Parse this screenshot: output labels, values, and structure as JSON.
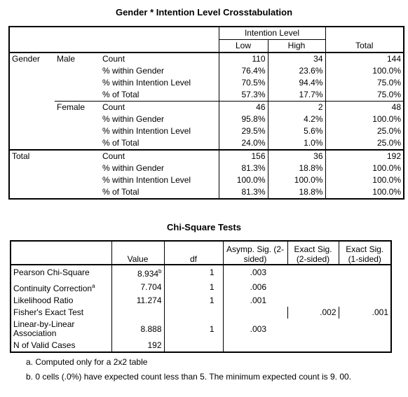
{
  "crosstab": {
    "title": "Gender * Intention Level Crosstabulation",
    "header_group": "Intention Level",
    "col_low": "Low",
    "col_high": "High",
    "col_total": "Total",
    "row_var": "Gender",
    "stat_labels": [
      "Count",
      "% within Gender",
      "% within Intention Level",
      "% of Total"
    ],
    "male": {
      "label": "Male",
      "rows": [
        [
          "110",
          "34",
          "144"
        ],
        [
          "76.4%",
          "23.6%",
          "100.0%"
        ],
        [
          "70.5%",
          "94.4%",
          "75.0%"
        ],
        [
          "57.3%",
          "17.7%",
          "75.0%"
        ]
      ]
    },
    "female": {
      "label": "Female",
      "rows": [
        [
          "46",
          "2",
          "48"
        ],
        [
          "95.8%",
          "4.2%",
          "100.0%"
        ],
        [
          "29.5%",
          "5.6%",
          "25.0%"
        ],
        [
          "24.0%",
          "1.0%",
          "25.0%"
        ]
      ]
    },
    "total": {
      "label": "Total",
      "rows": [
        [
          "156",
          "36",
          "192"
        ],
        [
          "81.3%",
          "18.8%",
          "100.0%"
        ],
        [
          "100.0%",
          "100.0%",
          "100.0%"
        ],
        [
          "81.3%",
          "18.8%",
          "100.0%"
        ]
      ]
    }
  },
  "chisq": {
    "title": "Chi-Square Tests",
    "headers": [
      "Value",
      "df",
      "Asymp. Sig. (2-sided)",
      "Exact Sig. (2-sided)",
      "Exact Sig. (1-sided)"
    ],
    "rows": [
      {
        "label": "Pearson Chi-Square",
        "label_sup": "",
        "value": "8.934",
        "value_sup": "b",
        "df": "1",
        "asymp": ".003",
        "exact2": "",
        "exact1": ""
      },
      {
        "label": "Continuity Correction",
        "label_sup": "a",
        "value": "7.704",
        "value_sup": "",
        "df": "1",
        "asymp": ".006",
        "exact2": "",
        "exact1": ""
      },
      {
        "label": "Likelihood Ratio",
        "label_sup": "",
        "value": "11.274",
        "value_sup": "",
        "df": "1",
        "asymp": ".001",
        "exact2": "",
        "exact1": ""
      },
      {
        "label": "Fisher's Exact Test",
        "label_sup": "",
        "value": "",
        "value_sup": "",
        "df": "",
        "asymp": "",
        "exact2": ".002",
        "exact1": ".001"
      },
      {
        "label": "Linear-by-Linear Association",
        "label_sup": "",
        "value": "8.888",
        "value_sup": "",
        "df": "1",
        "asymp": ".003",
        "exact2": "",
        "exact1": ""
      },
      {
        "label": "N of Valid Cases",
        "label_sup": "",
        "value": "192",
        "value_sup": "",
        "df": "",
        "asymp": "",
        "exact2": "",
        "exact1": ""
      }
    ]
  },
  "footnotes": {
    "a": "a. Computed only for a 2x2 table",
    "b": "b. 0 cells (.0%) have expected count less than 5. The minimum expected count is 9. 00."
  }
}
